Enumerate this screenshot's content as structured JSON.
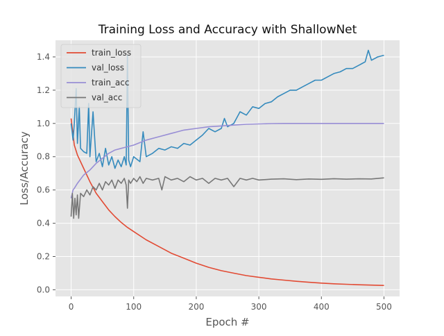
{
  "chart_data": {
    "type": "line",
    "title": "Training Loss and Accuracy with ShallowNet",
    "xlabel": "Epoch #",
    "ylabel": "Loss/Accuracy",
    "xlim": [
      -25,
      525
    ],
    "ylim": [
      -0.04,
      1.5
    ],
    "xticks": [
      0,
      100,
      200,
      300,
      400,
      500
    ],
    "yticks": [
      0.0,
      0.2,
      0.4,
      0.6,
      0.8,
      1.0,
      1.2,
      1.4
    ],
    "grid": true,
    "legend_position": "top-left",
    "style": "ggplot",
    "series": [
      {
        "name": "train_loss",
        "color": "#E24A33",
        "x": [
          0,
          5,
          10,
          20,
          30,
          40,
          50,
          60,
          70,
          80,
          90,
          100,
          120,
          140,
          160,
          180,
          200,
          220,
          240,
          260,
          280,
          300,
          320,
          340,
          360,
          380,
          400,
          420,
          440,
          460,
          480,
          500
        ],
        "y": [
          1.03,
          0.87,
          0.81,
          0.73,
          0.65,
          0.58,
          0.53,
          0.48,
          0.44,
          0.405,
          0.375,
          0.35,
          0.3,
          0.26,
          0.22,
          0.19,
          0.16,
          0.135,
          0.115,
          0.1,
          0.085,
          0.075,
          0.065,
          0.058,
          0.051,
          0.045,
          0.04,
          0.036,
          0.033,
          0.03,
          0.028,
          0.026
        ]
      },
      {
        "name": "val_loss",
        "color": "#348ABD",
        "x": [
          0,
          3,
          5,
          8,
          10,
          13,
          15,
          20,
          25,
          28,
          30,
          35,
          40,
          45,
          50,
          55,
          60,
          65,
          70,
          75,
          80,
          85,
          88,
          90,
          92,
          95,
          100,
          110,
          115,
          120,
          130,
          140,
          150,
          160,
          170,
          180,
          190,
          200,
          210,
          220,
          230,
          240,
          245,
          250,
          260,
          270,
          280,
          290,
          300,
          310,
          320,
          330,
          340,
          350,
          360,
          370,
          380,
          390,
          400,
          410,
          420,
          430,
          440,
          450,
          460,
          465,
          470,
          475,
          480,
          490,
          500
        ],
        "y": [
          1.0,
          0.9,
          1.0,
          1.21,
          0.88,
          1.1,
          0.85,
          0.83,
          0.82,
          1.12,
          0.8,
          1.07,
          0.77,
          0.82,
          0.74,
          0.85,
          0.75,
          0.8,
          0.73,
          0.78,
          0.74,
          0.8,
          0.75,
          1.41,
          0.78,
          0.74,
          0.8,
          0.77,
          0.95,
          0.8,
          0.82,
          0.85,
          0.84,
          0.86,
          0.85,
          0.88,
          0.87,
          0.9,
          0.93,
          0.97,
          0.95,
          0.97,
          1.03,
          0.98,
          1.0,
          1.07,
          1.05,
          1.1,
          1.09,
          1.12,
          1.13,
          1.16,
          1.18,
          1.2,
          1.2,
          1.22,
          1.24,
          1.26,
          1.26,
          1.28,
          1.3,
          1.31,
          1.33,
          1.33,
          1.35,
          1.36,
          1.37,
          1.44,
          1.38,
          1.4,
          1.41
        ]
      },
      {
        "name": "train_acc",
        "color": "#988ED5",
        "x": [
          0,
          3,
          5,
          10,
          20,
          30,
          40,
          50,
          60,
          70,
          80,
          90,
          100,
          120,
          140,
          160,
          180,
          200,
          220,
          240,
          260,
          280,
          300,
          320,
          340,
          360,
          380,
          400,
          420,
          440,
          460,
          480,
          500
        ],
        "y": [
          0.55,
          0.6,
          0.61,
          0.64,
          0.69,
          0.72,
          0.76,
          0.79,
          0.82,
          0.84,
          0.85,
          0.86,
          0.87,
          0.9,
          0.92,
          0.94,
          0.96,
          0.97,
          0.98,
          0.985,
          0.99,
          0.995,
          0.997,
          0.999,
          1.0,
          1.0,
          1.0,
          1.0,
          1.0,
          1.0,
          1.0,
          1.0,
          1.0
        ]
      },
      {
        "name": "val_acc",
        "color": "#777777",
        "x": [
          0,
          2,
          4,
          6,
          8,
          10,
          12,
          15,
          20,
          25,
          30,
          35,
          40,
          45,
          50,
          55,
          60,
          65,
          70,
          75,
          80,
          85,
          88,
          90,
          92,
          95,
          100,
          105,
          110,
          115,
          120,
          130,
          140,
          145,
          150,
          160,
          170,
          180,
          190,
          200,
          210,
          220,
          230,
          240,
          250,
          260,
          270,
          280,
          290,
          300,
          320,
          340,
          360,
          380,
          400,
          420,
          440,
          460,
          480,
          500
        ],
        "y": [
          0.44,
          0.58,
          0.43,
          0.55,
          0.45,
          0.57,
          0.43,
          0.58,
          0.56,
          0.6,
          0.57,
          0.62,
          0.6,
          0.64,
          0.6,
          0.65,
          0.63,
          0.66,
          0.61,
          0.66,
          0.64,
          0.67,
          0.63,
          0.49,
          0.66,
          0.64,
          0.67,
          0.65,
          0.68,
          0.64,
          0.67,
          0.66,
          0.67,
          0.6,
          0.68,
          0.66,
          0.67,
          0.65,
          0.68,
          0.66,
          0.67,
          0.64,
          0.67,
          0.66,
          0.67,
          0.62,
          0.67,
          0.66,
          0.67,
          0.66,
          0.665,
          0.667,
          0.662,
          0.666,
          0.664,
          0.668,
          0.665,
          0.667,
          0.666,
          0.673
        ]
      }
    ]
  }
}
